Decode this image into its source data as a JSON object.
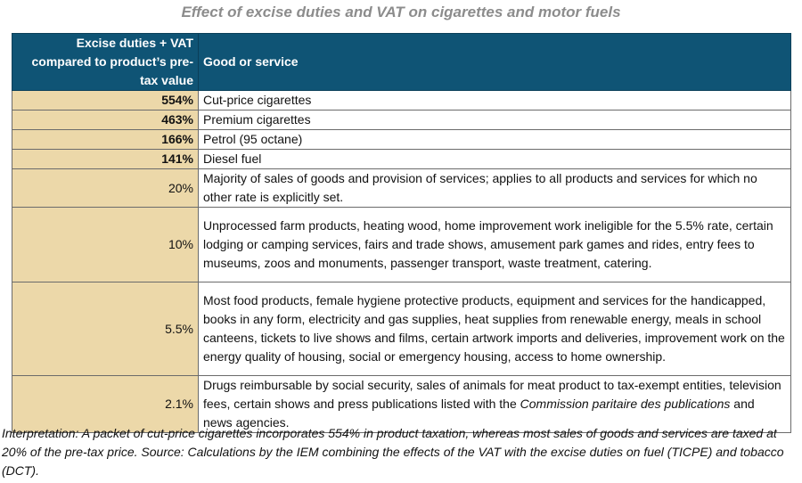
{
  "title": "Effect of excise duties and VAT on cigarettes and motor fuels",
  "table": {
    "headers": {
      "rate": "Excise duties + VAT compared to product’s pre-tax value",
      "good": "Good or service"
    },
    "rows": [
      {
        "rate": "554%",
        "desc": "Cut-price cigarettes"
      },
      {
        "rate": "463%",
        "desc": "Premium cigarettes"
      },
      {
        "rate": "166%",
        "desc": "Petrol (95 octane)"
      },
      {
        "rate": "141%",
        "desc": "Diesel fuel"
      },
      {
        "rate": "20%",
        "desc": "Majority of sales of goods and provision of services; applies to all products and services for which no other rate is explicitly set."
      },
      {
        "rate": "10%",
        "desc": "Unprocessed farm products, heating wood, home improvement work ineligible for the 5.5% rate, certain lodging or camping services, fairs and trade shows, amusement park games and rides, entry fees to museums, zoos and monuments, passenger transport, waste treatment, catering."
      },
      {
        "rate": "5.5%",
        "desc": "Most food products, female hygiene protective products, equipment and services for the handicapped, books in any form, electricity and gas supplies, heat supplies from renewable energy, meals in school canteens, tickets to live shows and films, certain artwork imports and deliveries, improvement work on the energy quality of housing, social or emergency housing, access to home ownership."
      },
      {
        "rate": "2.1%",
        "desc_before": "Drugs reimbursable by social security, sales of animals for meat product to tax-exempt entities, television fees, certain shows and press publications listed with the ",
        "desc_italic": "Commission paritaire des publications",
        "desc_after": " and news agencies."
      }
    ]
  },
  "note": "Interpretation: A packet of cut-price cigarettes incorporates 554% in product taxation, whereas most sales of goods and services are taxed at 20% of the pre-tax price. Source: Calculations by the IEM combining the effects of the VAT with the excise duties on fuel (TICPE) and tobacco (DCT)."
}
